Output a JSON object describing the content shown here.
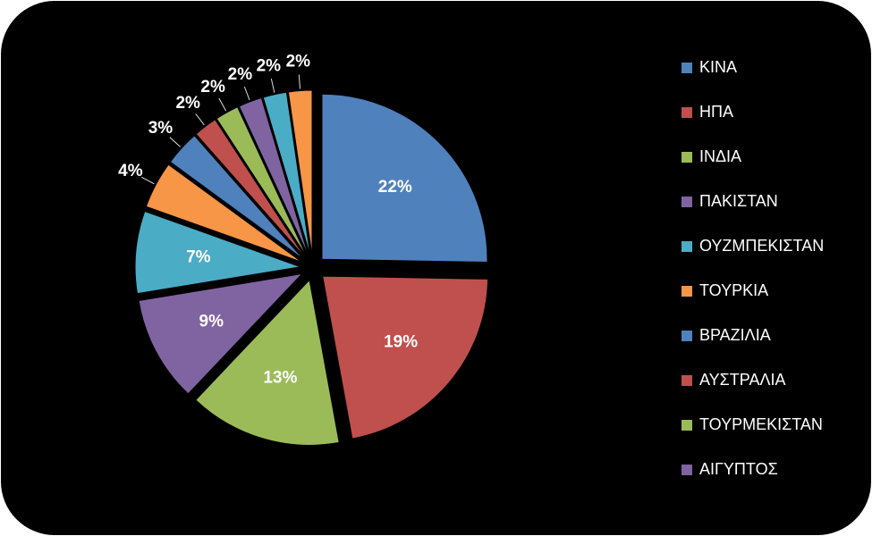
{
  "chart_data": {
    "type": "pie",
    "categories": [
      "ΚΙΝΑ",
      "ΗΠΑ",
      "ΙΝΔΙΑ",
      "ΠΑΚΙΣΤΑΝ",
      "ΟΥΖΜΠΕΚΙΣΤΑΝ",
      "ΤΟΥΡΚΙΑ",
      "ΒΡΑΖΙΛΙΑ",
      "ΑΥΣΤΡΑΛΙΑ",
      "ΤΟΥΡΜΕΚΙΣΤΑΝ",
      "ΑΙΓΥΠΤΟΣ",
      null,
      null
    ],
    "values": [
      22,
      19,
      13,
      9,
      7,
      4,
      3,
      2,
      2,
      2,
      2,
      2
    ],
    "value_labels": [
      "22%",
      "19%",
      "13%",
      "9%",
      "7%",
      "4%",
      "3%",
      "2%",
      "2%",
      "2%",
      "2%",
      "2%"
    ],
    "colors": [
      "#4f81bd",
      "#c0504d",
      "#9bbb59",
      "#8064a2",
      "#4bacc6",
      "#f79646",
      "#4f81bd",
      "#c0504d",
      "#9bbb59",
      "#8064a2",
      "#4bacc6",
      "#f79646"
    ],
    "legend": "right"
  }
}
